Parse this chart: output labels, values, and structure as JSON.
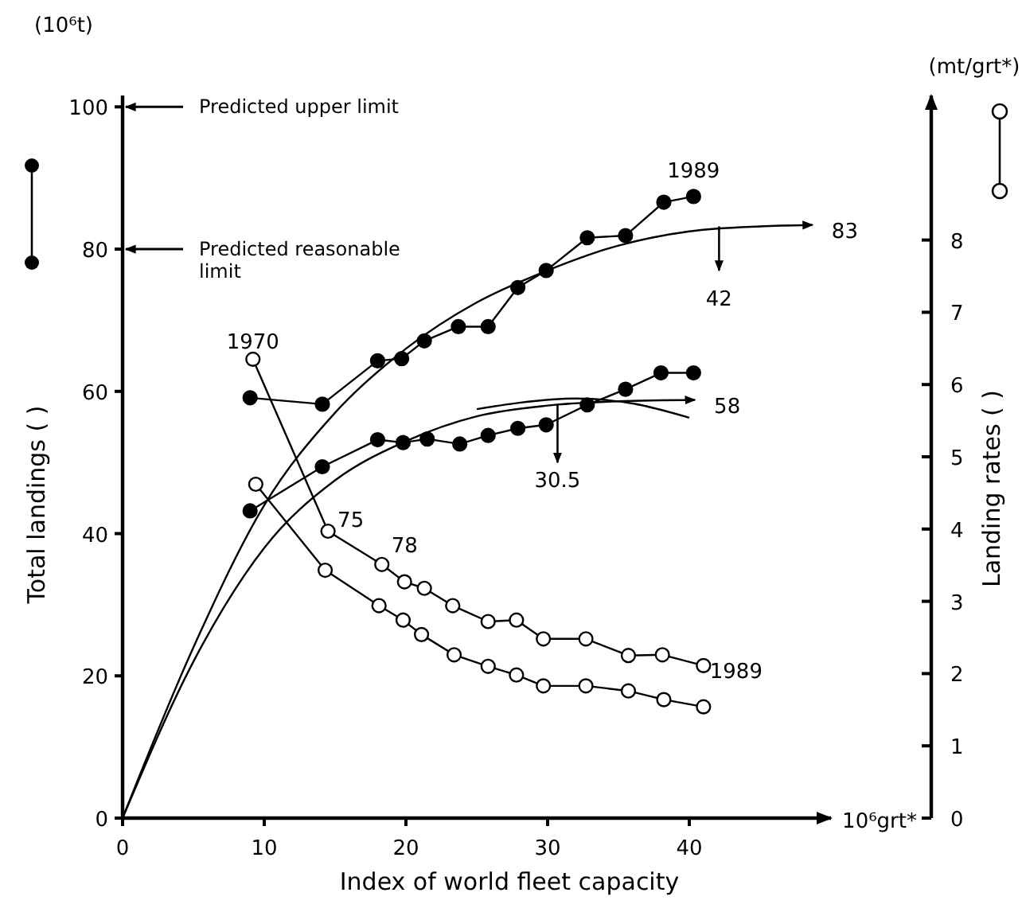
{
  "chart_data": {
    "type": "line",
    "xlabel": "Index of world fleet capacity",
    "ylabel": "Total landings ( )",
    "y2label": "Landing rates ( )",
    "xlim": [
      0,
      50
    ],
    "xticks": [
      0,
      10,
      20,
      30,
      40
    ],
    "ylim": [
      0,
      101.6
    ],
    "yticks": [
      0,
      20,
      40,
      60,
      80,
      100
    ],
    "y2lim": [
      0,
      10
    ],
    "y2ticks": [
      0,
      1,
      2,
      3,
      4,
      5,
      6,
      7,
      8
    ],
    "grid": false,
    "series": [
      {
        "marker": "circle",
        "color": "#000000",
        "x": [
          9.0,
          14.1,
          18.0,
          19.7,
          21.3,
          23.7,
          25.8,
          27.9,
          29.9,
          32.8,
          35.5,
          38.2,
          40.3
        ],
        "values": [
          59.1,
          58.2,
          64.3,
          64.6,
          67.1,
          69.1,
          69.1,
          74.6,
          77.0,
          81.6,
          81.9,
          86.6,
          87.4
        ]
      },
      {
        "marker": "circle",
        "color": "#000000",
        "x": [
          9.0,
          14.1,
          18.0,
          19.8,
          21.5,
          23.8,
          25.8,
          27.9,
          29.9,
          32.8,
          35.5,
          38.0,
          40.3
        ],
        "values": [
          43.2,
          49.4,
          53.2,
          52.8,
          53.3,
          52.6,
          53.8,
          54.8,
          55.3,
          58.1,
          60.3,
          62.6,
          62.6
        ]
      },
      {
        "marker": "circle",
        "axis": "y2",
        "color": "#000000",
        "x": [
          9.2,
          14.5,
          18.3,
          19.9,
          21.3,
          23.3,
          25.8,
          27.8,
          29.7,
          32.7,
          35.7,
          38.1,
          41.0
        ],
        "values": [
          6.35,
          3.97,
          3.51,
          3.27,
          3.18,
          2.94,
          2.72,
          2.74,
          2.48,
          2.48,
          2.25,
          2.26,
          2.11
        ]
      },
      {
        "marker": "circle",
        "axis": "y2",
        "color": "#000000",
        "x": [
          9.4,
          14.3,
          18.1,
          19.8,
          21.1,
          23.4,
          25.8,
          27.8,
          29.7,
          32.7,
          35.7,
          38.2,
          41.0
        ],
        "values": [
          4.62,
          3.43,
          2.94,
          2.74,
          2.54,
          2.26,
          2.1,
          1.98,
          1.83,
          1.83,
          1.76,
          1.64,
          1.54
        ]
      },
      {
        "marker": "none",
        "color": "#000000",
        "x": [
          0,
          5,
          10,
          15,
          20,
          25,
          30,
          35,
          40,
          45,
          48.7
        ],
        "values": [
          0,
          24,
          44,
          57,
          66,
          72.5,
          77,
          80.5,
          82.5,
          83.2,
          83.4
        ]
      },
      {
        "marker": "none",
        "color": "#000000",
        "x": [
          0,
          5,
          10,
          15,
          20,
          25,
          30,
          35,
          40.4
        ],
        "values": [
          0,
          22,
          38,
          47.5,
          53,
          56.5,
          58,
          58.6,
          58.8
        ]
      },
      {
        "marker": "none",
        "color": "#000000",
        "x": [
          25,
          28,
          32,
          36,
          40
        ],
        "values": [
          57.5,
          58.4,
          59,
          58.3,
          56.3
        ]
      }
    ],
    "ref_lines": [
      {
        "axis": "y",
        "value": 100,
        "label": "Predicted upper limit"
      },
      {
        "axis": "y",
        "value": 80,
        "label": "Predicted reasonable limit"
      }
    ],
    "annotations": [
      "(10⁶t)",
      "(mt/grt*)",
      "10⁶grt*",
      "42",
      "30.5",
      {
        "text": "1970",
        "x": 9.2,
        "y": 64.2
      },
      {
        "text": "75",
        "x": 14.5,
        "y": 40.1
      },
      {
        "text": "78",
        "x": 18.3,
        "y": 35.6
      },
      {
        "text": "1989",
        "x": 41.0,
        "y": 21.5
      },
      {
        "text": "1989",
        "x": 40.3,
        "y": 87.4
      },
      {
        "text": "83",
        "x": 48.7,
        "y": 83.4
      },
      {
        "text": "58",
        "x": 40.4,
        "y": 58.8
      }
    ]
  }
}
